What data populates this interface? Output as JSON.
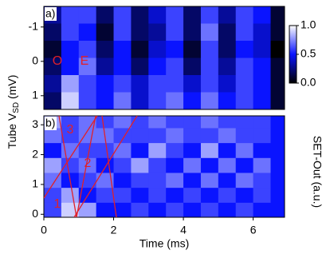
{
  "chart_data": [
    {
      "type": "heatmap",
      "panel_label": "a)",
      "xbins": [
        0,
        0.5,
        1,
        1.5,
        2,
        2.5,
        3,
        3.5,
        4,
        4.5,
        5,
        5.5,
        6,
        6.5,
        6.9
      ],
      "ybins": [
        -1.6,
        -1.1,
        -0.6,
        -0.1,
        0.4,
        0.9,
        1.4
      ],
      "xlim": [
        0,
        6.9
      ],
      "ylim": [
        -1.6,
        1.4
      ],
      "y_inverted": true,
      "yticks": [
        -1,
        0,
        1
      ],
      "zlim": [
        0,
        1
      ],
      "colormap": [
        "#000000",
        "#0a14ff",
        "#ffffff"
      ],
      "z": [
        [
          0.3,
          0.6,
          0.6,
          0.2,
          0.6,
          0.2,
          0.4,
          0.6,
          0.2,
          0.6,
          0.3,
          0.6,
          0.5,
          0.1
        ],
        [
          0.2,
          0.6,
          0.5,
          0.1,
          0.6,
          0.2,
          0.3,
          0.6,
          0.2,
          0.7,
          0.2,
          0.6,
          0.4,
          0.1
        ],
        [
          0.1,
          0.5,
          0.6,
          0.2,
          0.5,
          0.1,
          0.4,
          0.5,
          0.1,
          0.6,
          0.2,
          0.5,
          0.4,
          0.0
        ],
        [
          0.2,
          0.5,
          0.7,
          0.3,
          0.5,
          0.2,
          0.5,
          0.6,
          0.2,
          0.6,
          0.3,
          0.6,
          0.5,
          0.1
        ],
        [
          0.3,
          0.8,
          0.6,
          0.5,
          0.6,
          0.4,
          0.6,
          0.6,
          0.4,
          0.6,
          0.4,
          0.6,
          0.5,
          0.1
        ],
        [
          0.2,
          0.9,
          0.6,
          0.5,
          0.7,
          0.4,
          0.6,
          0.7,
          0.5,
          0.7,
          0.5,
          0.6,
          0.5,
          0.1
        ]
      ],
      "annotations": [
        "O",
        "E"
      ],
      "colorbar": {
        "lim": [
          0,
          1
        ],
        "ticks": [
          {
            "value": 0,
            "label": "0.0"
          },
          {
            "value": 0.5,
            "label": "0.5"
          },
          {
            "value": 1,
            "label": "1.0"
          }
        ],
        "label": "SET-Out (a.u.)"
      },
      "ylabel": {
        "main": "Tube V",
        "sub": "SD",
        "rest": " (mV)"
      }
    },
    {
      "type": "heatmap",
      "panel_label": "b)",
      "xbins": [
        0,
        0.5,
        1,
        1.5,
        2,
        2.5,
        3,
        3.5,
        4,
        4.5,
        5,
        5.5,
        6,
        6.5,
        6.9
      ],
      "ybins": [
        -0.1,
        0.4,
        0.9,
        1.4,
        1.9,
        2.4,
        2.9,
        3.3
      ],
      "xlim": [
        0,
        6.9
      ],
      "ylim": [
        -0.1,
        3.3
      ],
      "xticks": [
        0,
        2,
        4,
        6
      ],
      "yticks": [
        0,
        1,
        2,
        3
      ],
      "zlim": [
        0,
        1
      ],
      "colormap": [
        "#000000",
        "#0a14ff",
        "#ffffff"
      ],
      "xlabel": "Time (ms)",
      "z": [
        [
          0.6,
          0.9,
          0.8,
          0.5,
          0.5,
          0.6,
          0.5,
          0.6,
          0.5,
          0.6,
          0.5,
          0.6,
          0.5,
          0.5
        ],
        [
          0.6,
          0.8,
          0.5,
          0.6,
          0.6,
          0.5,
          0.6,
          0.5,
          0.6,
          0.5,
          0.6,
          0.5,
          0.6,
          0.5
        ],
        [
          0.7,
          0.5,
          0.6,
          0.7,
          0.5,
          0.6,
          0.6,
          0.7,
          0.5,
          0.7,
          0.5,
          0.7,
          0.6,
          0.5
        ],
        [
          0.8,
          0.6,
          0.7,
          0.5,
          0.6,
          0.8,
          0.6,
          0.5,
          0.7,
          0.5,
          0.7,
          0.5,
          0.7,
          0.5
        ],
        [
          0.5,
          0.7,
          0.6,
          0.6,
          0.7,
          0.5,
          0.8,
          0.6,
          0.5,
          0.8,
          0.5,
          0.7,
          0.5,
          0.5
        ],
        [
          0.7,
          0.6,
          0.7,
          0.7,
          0.6,
          0.6,
          0.6,
          0.7,
          0.6,
          0.6,
          0.7,
          0.6,
          0.6,
          0.5
        ],
        [
          0.8,
          0.6,
          0.7,
          0.6,
          0.7,
          0.6,
          0.7,
          0.6,
          0.6,
          0.7,
          0.6,
          0.6,
          0.6,
          0.5
        ]
      ],
      "annotations": [
        "3",
        "2",
        "1"
      ]
    }
  ]
}
